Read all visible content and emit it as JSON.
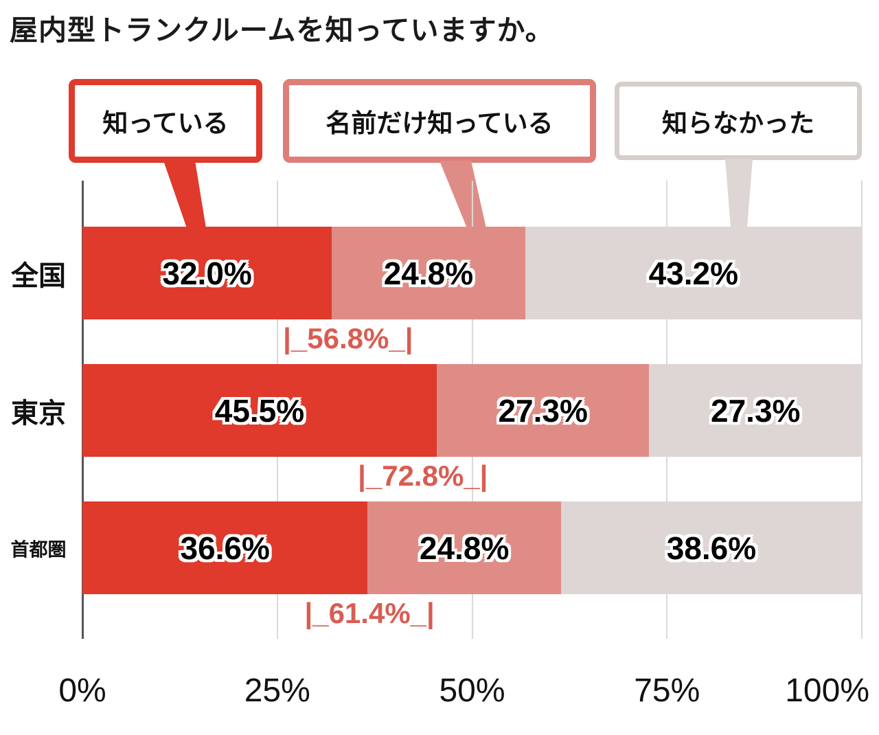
{
  "title": "屋内型トランクルームを知っていますか。",
  "colors": {
    "know": "#df3a2c",
    "name_only": "#e08c86",
    "did_not_know": "#ded6d4",
    "legend_border_know": "#df3a2c",
    "legend_border_name_only": "#dd7f78",
    "legend_border_did_not_know": "#d6cecb",
    "subtotal_text": "#d95c52",
    "gridline": "#d9d9d9",
    "axis": "#555555"
  },
  "legend": {
    "items": [
      {
        "label": "知っている",
        "color": "#df3a2c",
        "border": "#df3a2c"
      },
      {
        "label": "名前だけ知っている",
        "color": "#e08c86",
        "border": "#dd7f78"
      },
      {
        "label": "知らなかった",
        "color": "#ded6d4",
        "border": "#d6cecb"
      }
    ]
  },
  "chart_data": {
    "type": "bar",
    "orientation": "horizontal",
    "stacked": true,
    "title": "屋内型トランクルームを知っていますか。",
    "categories": [
      "全国",
      "東京",
      "首都圏"
    ],
    "series": [
      {
        "name": "知っている",
        "color": "#df3a2c",
        "values": [
          32.0,
          45.5,
          36.6
        ]
      },
      {
        "name": "名前だけ知っている",
        "color": "#e08c86",
        "values": [
          24.8,
          27.3,
          24.8
        ]
      },
      {
        "name": "知らなかった",
        "color": "#ded6d4",
        "values": [
          43.2,
          27.3,
          38.6
        ]
      }
    ],
    "value_labels": [
      [
        "32.0%",
        "24.8%",
        "43.2%"
      ],
      [
        "45.5%",
        "27.3%",
        "27.3%"
      ],
      [
        "36.6%",
        "24.8%",
        "38.6%"
      ]
    ],
    "subtotals": [
      {
        "label": "|_56.8%_|",
        "value": 56.8
      },
      {
        "label": "|_72.8%_|",
        "value": 72.8
      },
      {
        "label": "|_61.4%_|",
        "value": 61.4
      }
    ],
    "x_ticks": [
      {
        "label": "0%",
        "value": 0
      },
      {
        "label": "25%",
        "value": 25
      },
      {
        "label": "50%",
        "value": 50
      },
      {
        "label": "75%",
        "value": 75
      },
      {
        "label": "100%",
        "value": 100
      }
    ],
    "xlim": [
      0,
      100
    ],
    "grid": true,
    "legend_position": "top"
  }
}
